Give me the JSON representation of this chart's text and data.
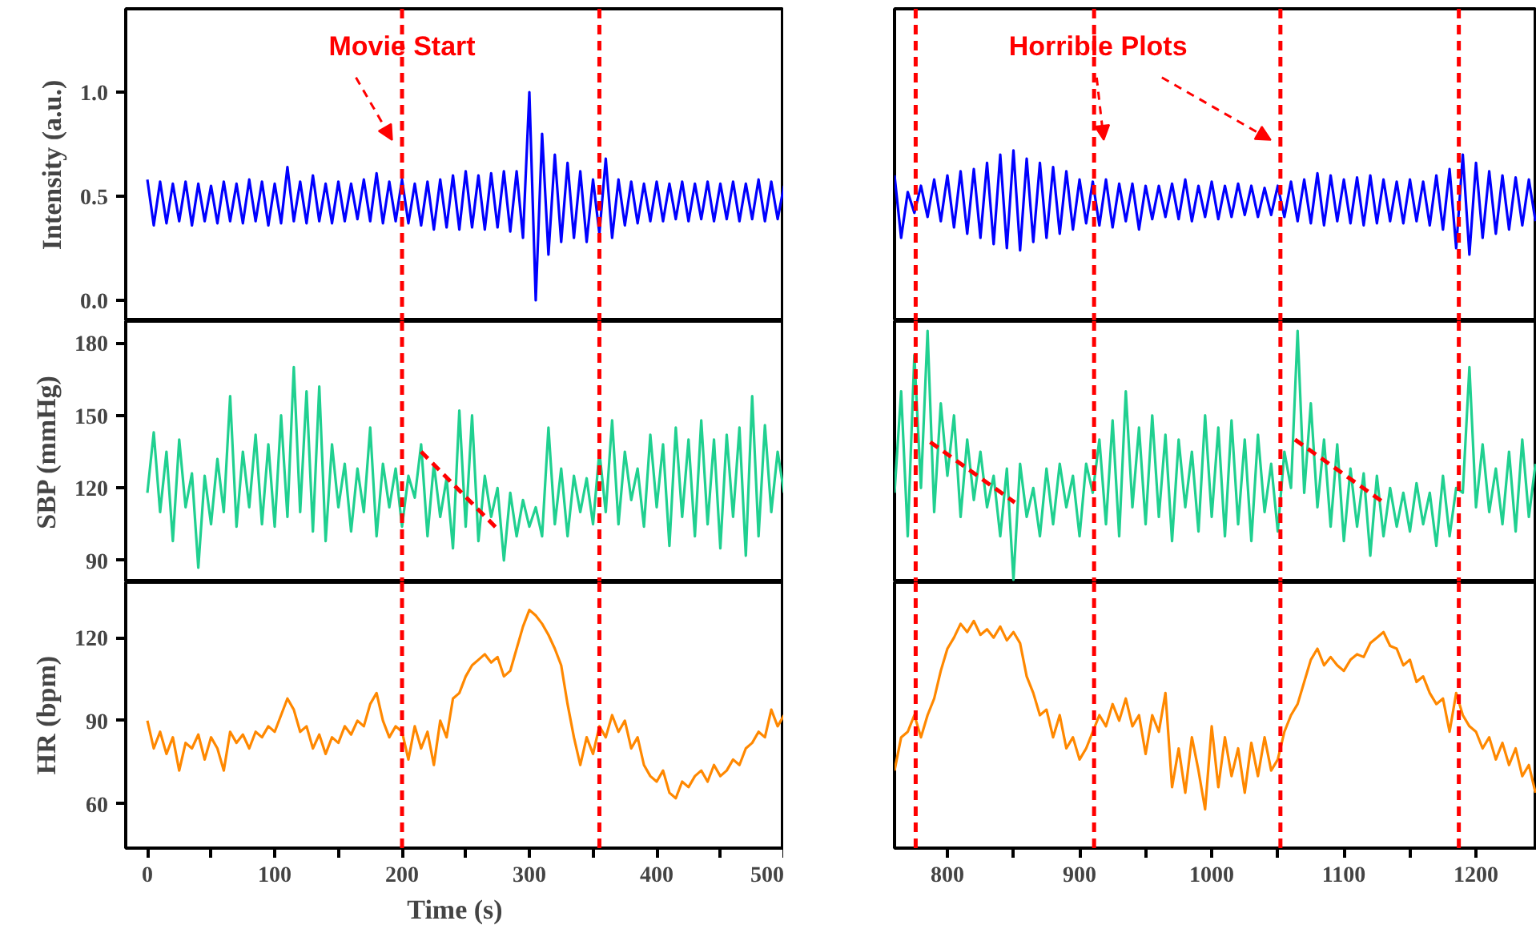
{
  "chart_data": [
    {
      "type": "line",
      "ylabel": "Intensity (a.u.)",
      "tick_labels": "y",
      "xlim": [
        -17,
        500
      ],
      "ylim": [
        -0.1,
        1.4
      ],
      "yticks": [
        {
          "value": 0,
          "label": "0.0"
        },
        {
          "value": 0.5,
          "label": "0.5"
        },
        {
          "value": 1,
          "label": "1.0"
        }
      ],
      "ref_lines": [
        {
          "axis": "x",
          "value": 200,
          "color": "#ff0000",
          "line_style": "dashed"
        },
        {
          "axis": "x",
          "value": 355,
          "color": "#ff0000",
          "line_style": "dashed"
        }
      ],
      "annotations": [
        "Movie Start"
      ],
      "x": [
        0,
        5,
        10,
        15,
        20,
        25,
        30,
        35,
        40,
        45,
        50,
        55,
        60,
        65,
        70,
        75,
        80,
        85,
        90,
        95,
        100,
        105,
        110,
        115,
        120,
        125,
        130,
        135,
        140,
        145,
        150,
        155,
        160,
        165,
        170,
        175,
        180,
        185,
        190,
        195,
        200,
        205,
        210,
        215,
        220,
        225,
        230,
        235,
        240,
        245,
        250,
        255,
        260,
        265,
        270,
        275,
        280,
        285,
        290,
        295,
        300,
        305,
        310,
        315,
        320,
        325,
        330,
        335,
        340,
        345,
        350,
        355,
        360,
        365,
        370,
        375,
        380,
        385,
        390,
        395,
        400,
        405,
        410,
        415,
        420,
        425,
        430,
        435,
        440,
        445,
        450,
        455,
        460,
        465,
        470,
        475,
        480,
        485,
        490,
        495,
        500
      ],
      "series": [
        {
          "color": "#0000ff",
          "values": [
            0.58,
            0.36,
            0.57,
            0.37,
            0.56,
            0.38,
            0.57,
            0.36,
            0.56,
            0.38,
            0.55,
            0.37,
            0.57,
            0.38,
            0.56,
            0.37,
            0.58,
            0.38,
            0.57,
            0.36,
            0.56,
            0.37,
            0.64,
            0.38,
            0.57,
            0.37,
            0.6,
            0.38,
            0.56,
            0.37,
            0.57,
            0.38,
            0.56,
            0.39,
            0.58,
            0.38,
            0.61,
            0.37,
            0.57,
            0.38,
            0.58,
            0.37,
            0.56,
            0.36,
            0.57,
            0.34,
            0.58,
            0.35,
            0.6,
            0.34,
            0.62,
            0.35,
            0.6,
            0.34,
            0.61,
            0.35,
            0.62,
            0.33,
            0.62,
            0.3,
            1.0,
            0.0,
            0.8,
            0.22,
            0.7,
            0.28,
            0.66,
            0.3,
            0.62,
            0.28,
            0.58,
            0.32,
            0.68,
            0.3,
            0.58,
            0.36,
            0.57,
            0.37,
            0.56,
            0.38,
            0.57,
            0.38,
            0.56,
            0.39,
            0.57,
            0.38,
            0.56,
            0.39,
            0.57,
            0.38,
            0.56,
            0.39,
            0.57,
            0.38,
            0.56,
            0.39,
            0.58,
            0.38,
            0.57,
            0.39,
            0.55
          ]
        }
      ]
    },
    {
      "type": "line",
      "tick_labels": false,
      "xlim": [
        760,
        1246
      ],
      "ylim": [
        -0.1,
        1.4
      ],
      "ref_lines": [
        {
          "axis": "x",
          "value": 776,
          "color": "#ff0000",
          "line_style": "dashed"
        },
        {
          "axis": "x",
          "value": 911,
          "color": "#ff0000",
          "line_style": "dashed"
        },
        {
          "axis": "x",
          "value": 1052,
          "color": "#ff0000",
          "line_style": "dashed"
        },
        {
          "axis": "x",
          "value": 1187,
          "color": "#ff0000",
          "line_style": "dashed"
        }
      ],
      "annotations": [
        "Horrible Plots"
      ],
      "x": [
        760,
        765,
        770,
        775,
        780,
        785,
        790,
        795,
        800,
        805,
        810,
        815,
        820,
        825,
        830,
        835,
        840,
        845,
        850,
        855,
        860,
        865,
        870,
        875,
        880,
        885,
        890,
        895,
        900,
        905,
        910,
        915,
        920,
        925,
        930,
        935,
        940,
        945,
        950,
        955,
        960,
        965,
        970,
        975,
        980,
        985,
        990,
        995,
        1000,
        1005,
        1010,
        1015,
        1020,
        1025,
        1030,
        1035,
        1040,
        1045,
        1050,
        1055,
        1060,
        1065,
        1070,
        1075,
        1080,
        1085,
        1090,
        1095,
        1100,
        1105,
        1110,
        1115,
        1120,
        1125,
        1130,
        1135,
        1140,
        1145,
        1150,
        1155,
        1160,
        1165,
        1170,
        1175,
        1180,
        1185,
        1190,
        1195,
        1200,
        1205,
        1210,
        1215,
        1220,
        1225,
        1230,
        1235,
        1240,
        1245
      ],
      "series": [
        {
          "color": "#0000ff",
          "values": [
            0.6,
            0.3,
            0.52,
            0.42,
            0.55,
            0.4,
            0.58,
            0.38,
            0.6,
            0.35,
            0.62,
            0.32,
            0.63,
            0.3,
            0.66,
            0.27,
            0.7,
            0.25,
            0.72,
            0.24,
            0.68,
            0.28,
            0.66,
            0.3,
            0.64,
            0.32,
            0.62,
            0.34,
            0.58,
            0.37,
            0.57,
            0.36,
            0.58,
            0.35,
            0.56,
            0.38,
            0.56,
            0.34,
            0.55,
            0.39,
            0.55,
            0.4,
            0.56,
            0.39,
            0.58,
            0.38,
            0.55,
            0.4,
            0.57,
            0.39,
            0.55,
            0.4,
            0.56,
            0.41,
            0.55,
            0.4,
            0.54,
            0.41,
            0.55,
            0.4,
            0.57,
            0.38,
            0.58,
            0.37,
            0.61,
            0.36,
            0.6,
            0.38,
            0.58,
            0.37,
            0.59,
            0.36,
            0.6,
            0.37,
            0.58,
            0.38,
            0.57,
            0.37,
            0.58,
            0.38,
            0.57,
            0.36,
            0.6,
            0.34,
            0.63,
            0.25,
            0.7,
            0.22,
            0.66,
            0.3,
            0.62,
            0.32,
            0.6,
            0.34,
            0.59,
            0.36,
            0.58,
            0.38
          ]
        }
      ]
    },
    {
      "type": "line",
      "ylabel": "SBP (mmHg)",
      "tick_labels": "y",
      "xlim": [
        -17,
        500
      ],
      "ylim": [
        81,
        189
      ],
      "yticks": [
        90,
        120,
        150,
        180
      ],
      "ref_lines": [
        {
          "axis": "x",
          "value": 200,
          "color": "#ff0000",
          "line_style": "dashed"
        },
        {
          "axis": "x",
          "value": 355,
          "color": "#ff0000",
          "line_style": "dashed"
        }
      ],
      "x": [
        0,
        5,
        10,
        15,
        20,
        25,
        30,
        35,
        40,
        45,
        50,
        55,
        60,
        65,
        70,
        75,
        80,
        85,
        90,
        95,
        100,
        105,
        110,
        115,
        120,
        125,
        130,
        135,
        140,
        145,
        150,
        155,
        160,
        165,
        170,
        175,
        180,
        185,
        190,
        195,
        200,
        205,
        210,
        215,
        220,
        225,
        230,
        235,
        240,
        245,
        250,
        255,
        260,
        265,
        270,
        275,
        280,
        285,
        290,
        295,
        300,
        305,
        310,
        315,
        320,
        325,
        330,
        335,
        340,
        345,
        350,
        355,
        360,
        365,
        370,
        375,
        380,
        385,
        390,
        395,
        400,
        405,
        410,
        415,
        420,
        425,
        430,
        435,
        440,
        445,
        450,
        455,
        460,
        465,
        470,
        475,
        480,
        485,
        490,
        495,
        500
      ],
      "series": [
        {
          "color": "#20d090",
          "values": [
            118,
            143,
            110,
            135,
            98,
            140,
            112,
            126,
            87,
            125,
            105,
            132,
            110,
            158,
            104,
            135,
            112,
            142,
            105,
            138,
            104,
            150,
            108,
            170,
            110,
            160,
            102,
            162,
            98,
            138,
            112,
            130,
            102,
            128,
            110,
            145,
            100,
            130,
            112,
            128,
            104,
            125,
            116,
            138,
            100,
            130,
            108,
            124,
            95,
            152,
            104,
            150,
            98,
            125,
            108,
            120,
            90,
            118,
            100,
            115,
            104,
            112,
            100,
            145,
            105,
            128,
            100,
            125,
            110,
            124,
            105,
            135,
            110,
            148,
            105,
            135,
            115,
            128,
            104,
            142,
            112,
            138,
            96,
            145,
            108,
            140,
            100,
            148,
            105,
            140,
            95,
            142,
            108,
            145,
            92,
            158,
            100,
            146,
            110,
            135,
            118
          ]
        },
        {
          "type": "line",
          "color": "#ff0000",
          "line_style": "dashed",
          "x": [
            215,
            275
          ],
          "values": [
            135,
            103
          ]
        }
      ]
    },
    {
      "type": "line",
      "tick_labels": false,
      "xlim": [
        760,
        1246
      ],
      "ylim": [
        81,
        189
      ],
      "ref_lines": [
        {
          "axis": "x",
          "value": 776,
          "color": "#ff0000",
          "line_style": "dashed"
        },
        {
          "axis": "x",
          "value": 911,
          "color": "#ff0000",
          "line_style": "dashed"
        },
        {
          "axis": "x",
          "value": 1052,
          "color": "#ff0000",
          "line_style": "dashed"
        },
        {
          "axis": "x",
          "value": 1187,
          "color": "#ff0000",
          "line_style": "dashed"
        }
      ],
      "x": [
        760,
        765,
        770,
        775,
        780,
        785,
        790,
        795,
        800,
        805,
        810,
        815,
        820,
        825,
        830,
        835,
        840,
        845,
        850,
        855,
        860,
        865,
        870,
        875,
        880,
        885,
        890,
        895,
        900,
        905,
        910,
        915,
        920,
        925,
        930,
        935,
        940,
        945,
        950,
        955,
        960,
        965,
        970,
        975,
        980,
        985,
        990,
        995,
        1000,
        1005,
        1010,
        1015,
        1020,
        1025,
        1030,
        1035,
        1040,
        1045,
        1050,
        1055,
        1060,
        1065,
        1070,
        1075,
        1080,
        1085,
        1090,
        1095,
        1100,
        1105,
        1110,
        1115,
        1120,
        1125,
        1130,
        1135,
        1140,
        1145,
        1150,
        1155,
        1160,
        1165,
        1170,
        1175,
        1180,
        1185,
        1190,
        1195,
        1200,
        1205,
        1210,
        1215,
        1220,
        1225,
        1230,
        1235,
        1240,
        1245
      ],
      "series": [
        {
          "color": "#20d090",
          "values": [
            118,
            160,
            100,
            175,
            120,
            185,
            110,
            155,
            125,
            150,
            108,
            140,
            115,
            135,
            112,
            125,
            100,
            128,
            82,
            130,
            108,
            120,
            100,
            128,
            105,
            130,
            112,
            125,
            100,
            130,
            118,
            140,
            105,
            148,
            100,
            160,
            112,
            145,
            105,
            150,
            108,
            142,
            98,
            140,
            112,
            135,
            102,
            150,
            108,
            145,
            100,
            148,
            105,
            140,
            98,
            142,
            110,
            130,
            102,
            135,
            120,
            185,
            118,
            155,
            112,
            140,
            104,
            138,
            98,
            128,
            104,
            126,
            92,
            125,
            100,
            120,
            104,
            118,
            102,
            122,
            105,
            118,
            96,
            125,
            100,
            120,
            118,
            170,
            112,
            138,
            110,
            128,
            105,
            135,
            102,
            140,
            108,
            130
          ]
        },
        {
          "type": "line",
          "color": "#ff0000",
          "line_style": "dashed",
          "x": [
            787,
            851
          ],
          "values": [
            139,
            114
          ]
        },
        {
          "type": "line",
          "color": "#ff0000",
          "line_style": "dashed",
          "x": [
            1063,
            1130
          ],
          "values": [
            140,
            114
          ]
        }
      ]
    },
    {
      "type": "line",
      "ylabel": "HR (bpm)",
      "xlabel": "Time (s)",
      "xlim": [
        -17,
        500
      ],
      "ylim": [
        44,
        140
      ],
      "yticks": [
        60,
        90,
        120
      ],
      "xticks": [
        0,
        {
          "value": 50,
          "label": null
        },
        100,
        {
          "value": 150,
          "label": null
        },
        200,
        {
          "value": 250,
          "label": null
        },
        300,
        {
          "value": 350,
          "label": null
        },
        400,
        {
          "value": 450,
          "label": null
        },
        500
      ],
      "ref_lines": [
        {
          "axis": "x",
          "value": 200,
          "color": "#ff0000",
          "line_style": "dashed"
        },
        {
          "axis": "x",
          "value": 355,
          "color": "#ff0000",
          "line_style": "dashed"
        }
      ],
      "x": [
        0,
        5,
        10,
        15,
        20,
        25,
        30,
        35,
        40,
        45,
        50,
        55,
        60,
        65,
        70,
        75,
        80,
        85,
        90,
        95,
        100,
        105,
        110,
        115,
        120,
        125,
        130,
        135,
        140,
        145,
        150,
        155,
        160,
        165,
        170,
        175,
        180,
        185,
        190,
        195,
        200,
        205,
        210,
        215,
        220,
        225,
        230,
        235,
        240,
        245,
        250,
        255,
        260,
        265,
        270,
        275,
        280,
        285,
        290,
        295,
        300,
        305,
        310,
        315,
        320,
        325,
        330,
        335,
        340,
        345,
        350,
        355,
        360,
        365,
        370,
        375,
        380,
        385,
        390,
        395,
        400,
        405,
        410,
        415,
        420,
        425,
        430,
        435,
        440,
        445,
        450,
        455,
        460,
        465,
        470,
        475,
        480,
        485,
        490,
        495,
        500
      ],
      "series": [
        {
          "color": "#ff8800",
          "values": [
            90,
            80,
            86,
            78,
            84,
            72,
            82,
            80,
            85,
            76,
            84,
            80,
            72,
            86,
            82,
            85,
            80,
            86,
            84,
            88,
            86,
            92,
            98,
            94,
            86,
            88,
            80,
            85,
            78,
            84,
            82,
            88,
            85,
            90,
            88,
            96,
            100,
            90,
            84,
            88,
            86,
            76,
            88,
            80,
            86,
            74,
            90,
            84,
            98,
            100,
            106,
            110,
            112,
            114,
            111,
            113,
            106,
            108,
            116,
            124,
            130,
            128,
            125,
            121,
            116,
            110,
            96,
            84,
            74,
            84,
            78,
            88,
            84,
            92,
            86,
            90,
            80,
            84,
            74,
            70,
            68,
            72,
            64,
            62,
            68,
            66,
            70,
            72,
            68,
            74,
            70,
            72,
            76,
            74,
            80,
            82,
            86,
            84,
            94,
            88,
            92
          ]
        }
      ]
    },
    {
      "type": "line",
      "tick_labels": "x",
      "xlim": [
        760,
        1246
      ],
      "ylim": [
        44,
        140
      ],
      "xticks": [
        800,
        {
          "value": 850,
          "label": null
        },
        900,
        {
          "value": 950,
          "label": null
        },
        1000,
        {
          "value": 1050,
          "label": null
        },
        1100,
        {
          "value": 1150,
          "label": null
        },
        1200
      ],
      "ref_lines": [
        {
          "axis": "x",
          "value": 776,
          "color": "#ff0000",
          "line_style": "dashed"
        },
        {
          "axis": "x",
          "value": 911,
          "color": "#ff0000",
          "line_style": "dashed"
        },
        {
          "axis": "x",
          "value": 1052,
          "color": "#ff0000",
          "line_style": "dashed"
        },
        {
          "axis": "x",
          "value": 1187,
          "color": "#ff0000",
          "line_style": "dashed"
        }
      ],
      "x": [
        760,
        765,
        770,
        775,
        780,
        785,
        790,
        795,
        800,
        805,
        810,
        815,
        820,
        825,
        830,
        835,
        840,
        845,
        850,
        855,
        860,
        865,
        870,
        875,
        880,
        885,
        890,
        895,
        900,
        905,
        910,
        915,
        920,
        925,
        930,
        935,
        940,
        945,
        950,
        955,
        960,
        965,
        970,
        975,
        980,
        985,
        990,
        995,
        1000,
        1005,
        1010,
        1015,
        1020,
        1025,
        1030,
        1035,
        1040,
        1045,
        1050,
        1055,
        1060,
        1065,
        1070,
        1075,
        1080,
        1085,
        1090,
        1095,
        1100,
        1105,
        1110,
        1115,
        1120,
        1125,
        1130,
        1135,
        1140,
        1145,
        1150,
        1155,
        1160,
        1165,
        1170,
        1175,
        1180,
        1185,
        1190,
        1195,
        1200,
        1205,
        1210,
        1215,
        1220,
        1225,
        1230,
        1235,
        1240,
        1245
      ],
      "series": [
        {
          "color": "#ff8800",
          "values": [
            72,
            84,
            86,
            92,
            84,
            92,
            98,
            108,
            116,
            120,
            125,
            122,
            126,
            121,
            123,
            120,
            124,
            119,
            122,
            118,
            106,
            100,
            92,
            94,
            84,
            92,
            80,
            84,
            76,
            80,
            86,
            92,
            88,
            96,
            90,
            98,
            88,
            92,
            78,
            92,
            86,
            100,
            66,
            80,
            64,
            84,
            72,
            58,
            88,
            66,
            84,
            70,
            80,
            64,
            82,
            70,
            84,
            72,
            76,
            86,
            92,
            96,
            104,
            112,
            116,
            110,
            113,
            110,
            108,
            112,
            114,
            113,
            118,
            120,
            122,
            117,
            116,
            110,
            112,
            104,
            106,
            100,
            96,
            98,
            86,
            100,
            92,
            88,
            86,
            80,
            84,
            76,
            82,
            74,
            80,
            70,
            74,
            64
          ]
        }
      ]
    }
  ]
}
